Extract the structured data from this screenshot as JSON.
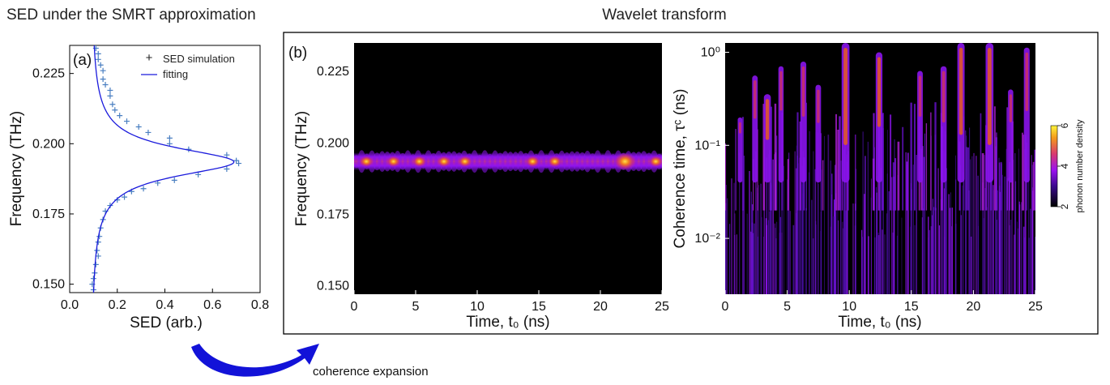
{
  "titles": {
    "left": "SED under the SMRT approximation",
    "right": "Wavelet transform"
  },
  "arrow_note": "coherence expansion",
  "chart_data": [
    {
      "id": "a",
      "panel_label": "(a)",
      "type": "scatter",
      "xlabel": "SED (arb.)",
      "ylabel": "Frequency (THz)",
      "xlim": [
        0.0,
        0.8
      ],
      "ylim": [
        0.147,
        0.235
      ],
      "xticks": [
        "0.0",
        "0.2",
        "0.4",
        "0.6",
        "0.8"
      ],
      "yticks": [
        "0.150",
        "0.175",
        "0.200",
        "0.225"
      ],
      "legend": "top-right",
      "series": [
        {
          "name": "SED simulation",
          "marker": "+",
          "color": "#4a7fc1",
          "points": [
            [
              0.1,
              0.148
            ],
            [
              0.095,
              0.15
            ],
            [
              0.1,
              0.152
            ],
            [
              0.105,
              0.154
            ],
            [
              0.11,
              0.157
            ],
            [
              0.12,
              0.16
            ],
            [
              0.115,
              0.162
            ],
            [
              0.12,
              0.165
            ],
            [
              0.125,
              0.167
            ],
            [
              0.13,
              0.17
            ],
            [
              0.14,
              0.173
            ],
            [
              0.15,
              0.176
            ],
            [
              0.17,
              0.178
            ],
            [
              0.2,
              0.18
            ],
            [
              0.23,
              0.181
            ],
            [
              0.26,
              0.183
            ],
            [
              0.31,
              0.184
            ],
            [
              0.37,
              0.186
            ],
            [
              0.44,
              0.187
            ],
            [
              0.54,
              0.189
            ],
            [
              0.66,
              0.191
            ],
            [
              0.71,
              0.193
            ],
            [
              0.7,
              0.194
            ],
            [
              0.66,
              0.196
            ],
            [
              0.5,
              0.198
            ],
            [
              0.42,
              0.2
            ],
            [
              0.42,
              0.202
            ],
            [
              0.33,
              0.204
            ],
            [
              0.29,
              0.206
            ],
            [
              0.24,
              0.208
            ],
            [
              0.21,
              0.21
            ],
            [
              0.19,
              0.212
            ],
            [
              0.18,
              0.214
            ],
            [
              0.17,
              0.217
            ],
            [
              0.17,
              0.219
            ],
            [
              0.15,
              0.221
            ],
            [
              0.14,
              0.223
            ],
            [
              0.14,
              0.226
            ],
            [
              0.13,
              0.228
            ],
            [
              0.12,
              0.23
            ],
            [
              0.12,
              0.232
            ],
            [
              0.11,
              0.234
            ]
          ]
        },
        {
          "name": "fitting",
          "color": "#1a1adc",
          "model": {
            "type": "lorentzian",
            "center": 0.1935,
            "hwhm": 0.0062,
            "peak": 0.6,
            "baseline": 0.09
          }
        }
      ]
    },
    {
      "id": "b1",
      "panel_label": "(b)",
      "type": "heatmap",
      "xlabel": "Time, t₀ (ns)",
      "ylabel": "Frequency (THz)",
      "xlim": [
        0,
        25
      ],
      "ylim": [
        0.147,
        0.235
      ],
      "xticks": [
        "0",
        "5",
        "10",
        "15",
        "20",
        "25"
      ],
      "yticks": [
        "0.150",
        "0.175",
        "0.200",
        "0.225"
      ],
      "band_center": 0.1935,
      "hot_spots": [
        1.0,
        3.2,
        5.3,
        7.3,
        9.0,
        14.5,
        16.3,
        22.0,
        24.5
      ]
    },
    {
      "id": "b2",
      "type": "heatmap",
      "xlabel": "Time, t₀ (ns)",
      "ylabel": "Coherence time, τᶜ (ns)",
      "xlim": [
        0,
        25
      ],
      "ylim_log10": [
        -2.6,
        0.1
      ],
      "xticks": [
        "0",
        "5",
        "10",
        "15",
        "20",
        "25"
      ],
      "yticks": [
        "10⁻²",
        "10⁻¹",
        "10⁰"
      ],
      "yscale": "log",
      "tall_streaks": [
        {
          "t": 1.2,
          "top": -0.7,
          "v": 0.4
        },
        {
          "t": 2.4,
          "top": -0.25,
          "v": 0.55
        },
        {
          "t": 3.4,
          "top": -0.45,
          "v": 0.8
        },
        {
          "t": 4.5,
          "top": -0.15,
          "v": 0.5
        },
        {
          "t": 6.3,
          "top": -0.1,
          "v": 0.6
        },
        {
          "t": 7.5,
          "top": -0.35,
          "v": 0.55
        },
        {
          "t": 9.7,
          "top": 0.1,
          "v": 0.95
        },
        {
          "t": 12.4,
          "top": 0.0,
          "v": 0.75
        },
        {
          "t": 15.7,
          "top": -0.2,
          "v": 0.55
        },
        {
          "t": 17.6,
          "top": -0.15,
          "v": 0.65
        },
        {
          "t": 19.0,
          "top": 0.1,
          "v": 0.85
        },
        {
          "t": 21.3,
          "top": 0.1,
          "v": 0.95
        },
        {
          "t": 23.0,
          "top": -0.4,
          "v": 0.5
        },
        {
          "t": 24.3,
          "top": 0.05,
          "v": 0.6
        }
      ],
      "colorbar": {
        "label": "phonon number density",
        "ticks": [
          "2",
          "4",
          "6"
        ],
        "range": [
          2,
          6
        ]
      }
    }
  ]
}
